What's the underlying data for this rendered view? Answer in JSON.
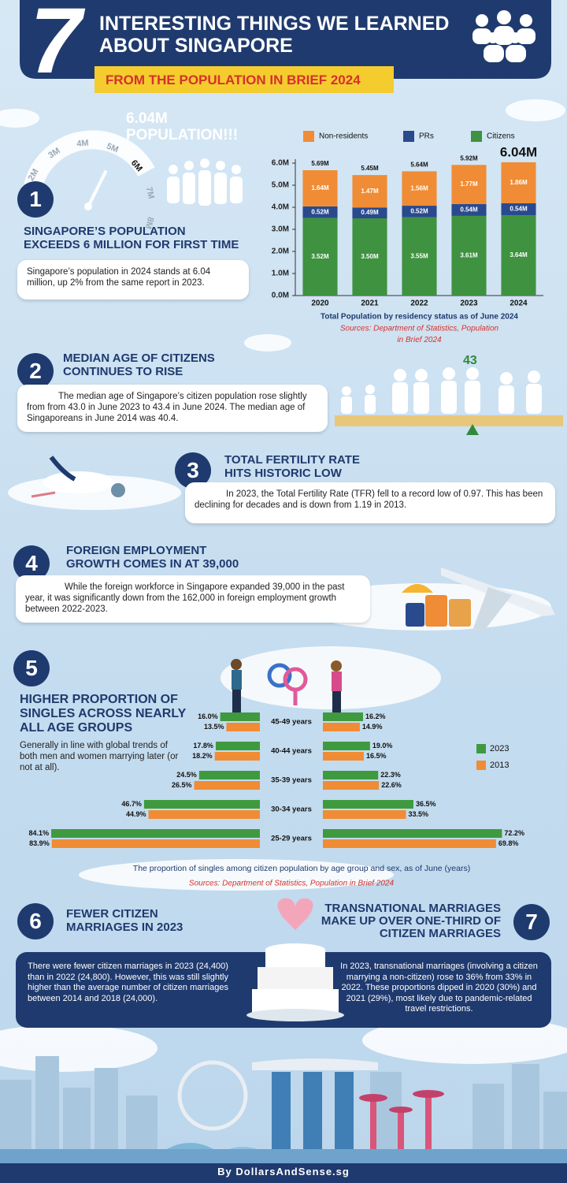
{
  "header": {
    "number": "7",
    "title_lines": [
      "INTERESTING THINGS WE LEARNED",
      "ABOUT SINGAPORE"
    ],
    "subtitle": "FROM THE POPULATION IN BRIEF 2024"
  },
  "gauge": {
    "headline": [
      "6.04M",
      "POPULATION!!!"
    ],
    "labels": [
      "2M",
      "3M",
      "4M",
      "5M",
      "6M",
      "7M",
      "8M"
    ]
  },
  "sections": [
    {
      "number": "1",
      "title_lines": [
        "SINGAPORE’S POPULATION",
        "EXCEEDS 6 MILLION FOR FIRST TIME"
      ],
      "body": "Singapore’s population in 2024 stands at 6.04 million, up 2% from the same report in 2023."
    },
    {
      "number": "2",
      "title_lines": [
        "MEDIAN AGE OF CITIZENS",
        "CONTINUES TO RISE"
      ],
      "body": "The median age of Singapore’s citizen population rose slightly from from 43.0 in June 2023 to 43.4 in June 2024. The median age of Singaporeans in June 2014 was 40.4.",
      "scale_label": "43"
    },
    {
      "number": "3",
      "title_lines": [
        "TOTAL FERTILITY RATE",
        "HITS HISTORIC LOW"
      ],
      "body": "In 2023, the Total Fertility Rate (TFR) fell to a record low of 0.97. This has been declining for decades and is down from 1.19 in 2013."
    },
    {
      "number": "4",
      "title_lines": [
        "FOREIGN EMPLOYMENT",
        "GROWTH COMES IN AT 39,000"
      ],
      "body": "While the foreign workforce in Singapore expanded 39,000 in the past year, it was significantly down from the 162,000 in foreign employment growth between 2022-2023."
    },
    {
      "number": "5",
      "title_lines": [
        "HIGHER PROPORTION OF",
        "SINGLES ACROSS NEARLY",
        "ALL AGE GROUPS"
      ],
      "body": "Generally in line with global trends of both men and women marrying later (or not at all)."
    },
    {
      "number": "6",
      "title_lines": [
        "FEWER CITIZEN",
        "MARRIAGES IN 2023"
      ],
      "body": "There were fewer citizen marriages in 2023 (24,400) than in 2022 (24,800). However, this was still slightly higher than the average number of citizen marriages between 2014 and 2018 (24,000)."
    },
    {
      "number": "7",
      "title_lines": [
        "TRANSNATIONAL MARRIAGES",
        "MAKE UP OVER ONE-THIRD OF",
        "CITIZEN MARRIAGES"
      ],
      "body": "In 2023, transnational marriages (involving a citizen marrying a non-citizen) rose to 36% from 33% in 2022. These proportions dipped in 2020 (30%) and 2021 (29%), most likely due to pandemic-related travel restrictions."
    }
  ],
  "chart_data": [
    {
      "type": "stacked-bar",
      "categories": [
        "2020",
        "2021",
        "2022",
        "2023",
        "2024"
      ],
      "series": [
        {
          "name": "Non-residents",
          "color": "#f08c35",
          "values": [
            1.64,
            1.47,
            1.56,
            1.77,
            1.86
          ],
          "value_labels": [
            "1.64M",
            "1.47M",
            "1.56M",
            "1.77M",
            "1.86M"
          ]
        },
        {
          "name": "PRs",
          "color": "#2a4a8e",
          "values": [
            0.52,
            0.49,
            0.52,
            0.54,
            0.54
          ],
          "value_labels": [
            "0.52M",
            "0.49M",
            "0.52M",
            "0.54M",
            "0.54M"
          ]
        },
        {
          "name": "Citizens",
          "color": "#3f9240",
          "values": [
            3.52,
            3.5,
            3.55,
            3.61,
            3.64
          ],
          "value_labels": [
            "3.52M",
            "3.50M",
            "3.55M",
            "3.61M",
            "3.64M"
          ]
        }
      ],
      "totals": {
        "values": [
          5.69,
          5.45,
          5.64,
          5.92,
          6.04
        ],
        "value_labels": [
          "5.69M",
          "5.45M",
          "5.64M",
          "5.92M",
          "6.04M"
        ]
      },
      "ylim": [
        0,
        6
      ],
      "yticks": [
        {
          "value": 0,
          "label": "0.0M"
        },
        {
          "value": 1,
          "label": "1.0M"
        },
        {
          "value": 2,
          "label": "2.0M"
        },
        {
          "value": 3,
          "label": "3.0M"
        },
        {
          "value": 4,
          "label": "4.0M"
        },
        {
          "value": 5,
          "label": "5.0M"
        },
        {
          "value": 6,
          "label": "6.0M"
        }
      ],
      "xlabel": "Total Population by residency status as of June 2024",
      "source": "Sources: Department of Statistics, Population in Brief 2024"
    },
    {
      "type": "butterfly-bar",
      "categories": [
        "45-49 years",
        "40-44 years",
        "35-39 years",
        "30-34 years",
        "25-29 years"
      ],
      "series": [
        {
          "name": "2023",
          "color": "#3f9a3f",
          "left_values": [
            16.0,
            17.8,
            24.5,
            46.7,
            84.1
          ],
          "left_value_labels": [
            "16.0%",
            "17.8%",
            "24.5%",
            "46.7%",
            "84.1%"
          ],
          "right_values": [
            16.2,
            19.0,
            22.3,
            36.5,
            72.2
          ],
          "right_value_labels": [
            "16.2%",
            "19.0%",
            "22.3%",
            "36.5%",
            "72.2%"
          ]
        },
        {
          "name": "2013",
          "color": "#f08c35",
          "left_values": [
            13.5,
            18.2,
            26.5,
            44.9,
            83.9
          ],
          "left_value_labels": [
            "13.5%",
            "18.2%",
            "26.5%",
            "44.9%",
            "83.9%"
          ],
          "right_values": [
            14.9,
            16.5,
            22.6,
            33.5,
            69.8
          ],
          "right_value_labels": [
            "14.9%",
            "16.5%",
            "22.6%",
            "33.5%",
            "69.8%"
          ]
        }
      ],
      "xlabel": "The proportion of singles among citizen population by age group and sex, as of June (years)",
      "source": "Sources: Department of Statistics, Population in Brief 2024"
    }
  ],
  "footer": "By DollarsAndSense.sg"
}
